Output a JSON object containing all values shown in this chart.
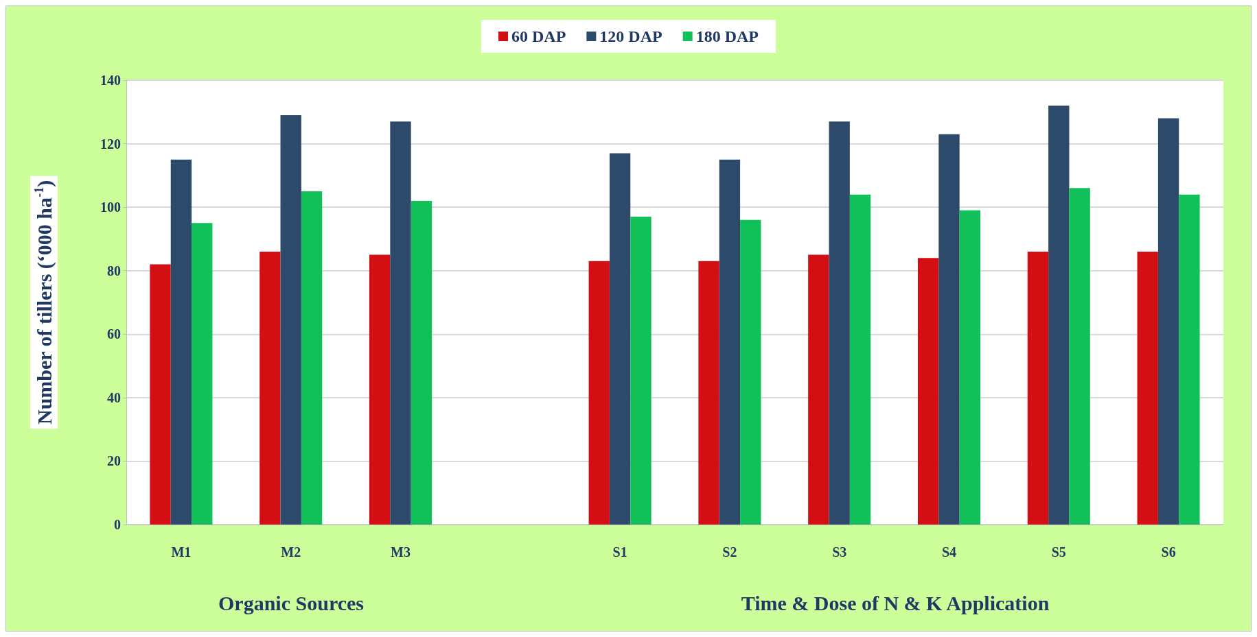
{
  "chart_data": {
    "type": "bar",
    "categories": [
      "M1",
      "M2",
      "M3",
      null,
      "S1",
      "S2",
      "S3",
      "S4",
      "S5",
      "S6"
    ],
    "series": [
      {
        "name": "60 DAP",
        "color": "#d40f14",
        "values": [
          82,
          86,
          85,
          null,
          83,
          83,
          85,
          84,
          86,
          86
        ]
      },
      {
        "name": "120 DAP",
        "color": "#2e4a6b",
        "values": [
          115,
          129,
          127,
          null,
          117,
          115,
          127,
          123,
          132,
          128
        ]
      },
      {
        "name": "180 DAP",
        "color": "#12c05a",
        "values": [
          95,
          105,
          102,
          null,
          97,
          96,
          104,
          99,
          106,
          104
        ]
      }
    ],
    "ylabel": "Number of tillers (‘000 ha$^{-1}$)",
    "annotations": [
      "Organic Sources",
      "Time & Dose of N & K Application"
    ],
    "ylim": [
      0,
      140
    ],
    "yticks": [
      0,
      20,
      40,
      60,
      80,
      100,
      120,
      140
    ],
    "grid": "y",
    "legend": "top"
  }
}
